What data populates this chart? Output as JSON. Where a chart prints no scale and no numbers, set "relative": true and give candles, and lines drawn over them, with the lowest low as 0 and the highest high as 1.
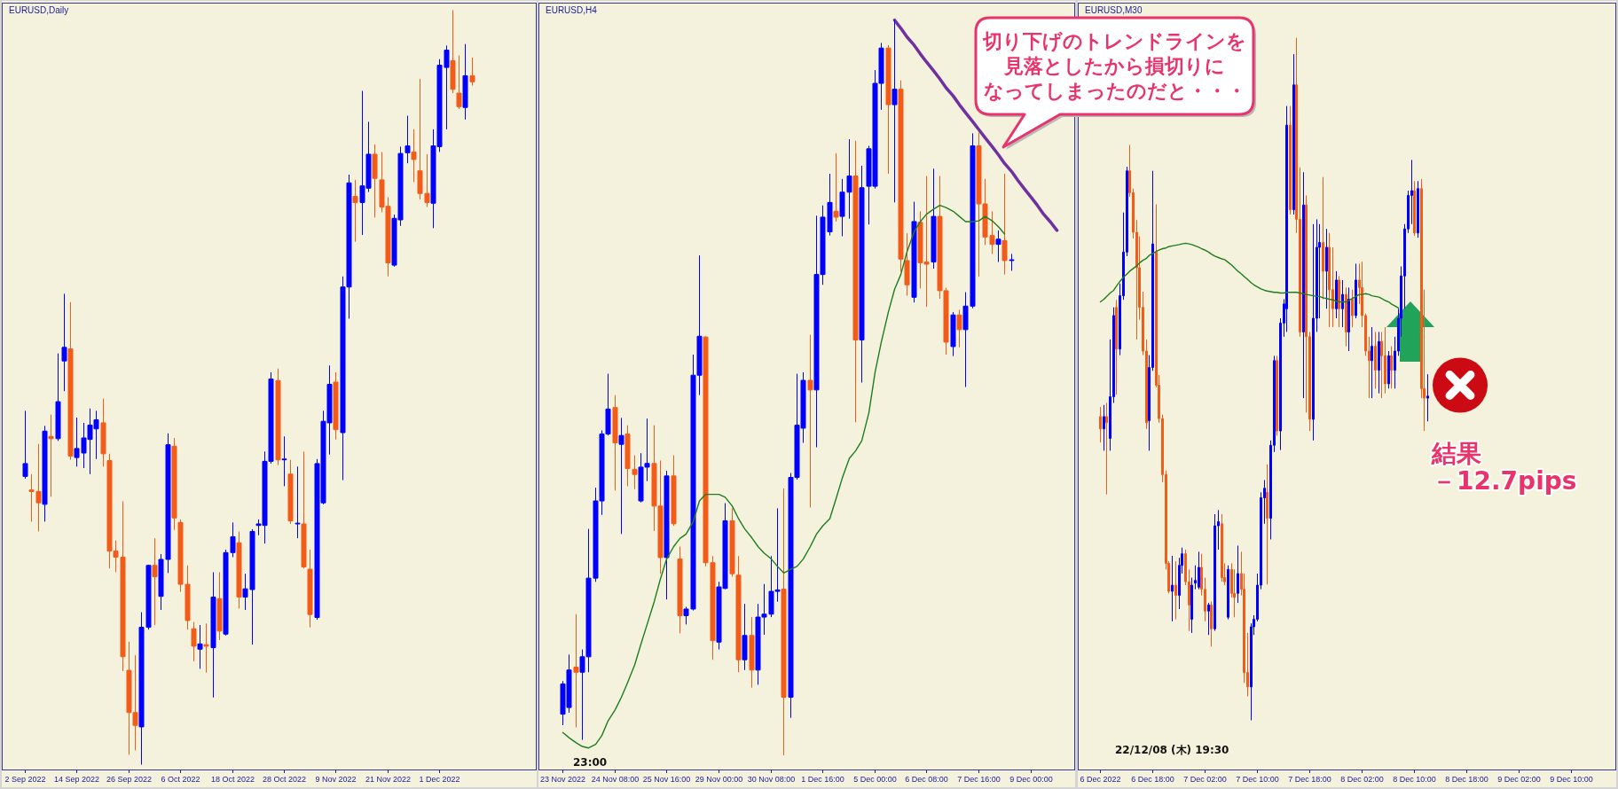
{
  "chart_data": [
    {
      "type": "candlestick",
      "title": "EURUSD,Daily",
      "relative": true,
      "categories": [
        "2 Sep 2022",
        null,
        null,
        null,
        null,
        null,
        null,
        null,
        "14 Sep 2022",
        null,
        null,
        null,
        null,
        null,
        null,
        null,
        "26 Sep 2022",
        null,
        null,
        null,
        null,
        null,
        null,
        null,
        "6 Oct 2022",
        null,
        null,
        null,
        null,
        null,
        null,
        null,
        "18 Oct 2022",
        null,
        null,
        null,
        null,
        null,
        null,
        null,
        "28 Oct 2022",
        null,
        null,
        null,
        null,
        null,
        null,
        null,
        "9 Nov 2022",
        null,
        null,
        null,
        null,
        null,
        null,
        null,
        "21 Nov 2022",
        null,
        null,
        null,
        null,
        null,
        null,
        null,
        "1 Dec 2022",
        null,
        null,
        null,
        null,
        null,
        null,
        null,
        null,
        null,
        null,
        null,
        null,
        null,
        null
      ],
      "ohlc": [
        [
          0.382,
          0.469,
          0.379,
          0.399
        ],
        [
          0.364,
          0.385,
          0.322,
          0.362
        ],
        [
          0.362,
          0.425,
          0.309,
          0.347
        ],
        [
          0.345,
          0.449,
          0.322,
          0.442
        ],
        [
          0.435,
          0.464,
          0.355,
          0.432
        ],
        [
          0.432,
          0.545,
          0.429,
          0.481
        ],
        [
          0.535,
          0.624,
          0.495,
          0.553
        ],
        [
          0.551,
          0.613,
          0.404,
          0.409
        ],
        [
          0.407,
          0.46,
          0.395,
          0.419
        ],
        [
          0.413,
          0.453,
          0.393,
          0.433
        ],
        [
          0.431,
          0.472,
          0.385,
          0.45
        ],
        [
          0.445,
          0.469,
          0.405,
          0.457
        ],
        [
          0.453,
          0.485,
          0.395,
          0.412
        ],
        [
          0.403,
          0.412,
          0.26,
          0.283
        ],
        [
          0.283,
          0.297,
          0.255,
          0.275
        ],
        [
          0.275,
          0.349,
          0.124,
          0.143
        ],
        [
          0.125,
          0.163,
          0.013,
          0.069
        ],
        [
          0.069,
          0.145,
          0.019,
          0.052
        ],
        [
          0.05,
          0.202,
          0,
          0.182
        ],
        [
          0.182,
          0.265,
          0.179,
          0.264
        ],
        [
          0.264,
          0.3,
          0.185,
          0.249
        ],
        [
          0.223,
          0.279,
          0.205,
          0.272
        ],
        [
          0.272,
          0.439,
          0.254,
          0.424
        ],
        [
          0.422,
          0.433,
          0.311,
          0.327
        ],
        [
          0.321,
          0.325,
          0.229,
          0.239
        ],
        [
          0.239,
          0.264,
          0.179,
          0.191
        ],
        [
          0.18,
          0.189,
          0.137,
          0.157
        ],
        [
          0.153,
          0.185,
          0.127,
          0.16
        ],
        [
          0.159,
          0.187,
          0.122,
          0.157
        ],
        [
          0.155,
          0.255,
          0.089,
          0.222
        ],
        [
          0.22,
          0.255,
          0.165,
          0.177
        ],
        [
          0.173,
          0.285,
          0.171,
          0.281
        ],
        [
          0.281,
          0.321,
          0.275,
          0.302
        ],
        [
          0.294,
          0.309,
          0.207,
          0.222
        ],
        [
          0.222,
          0.253,
          0.205,
          0.233
        ],
        [
          0.232,
          0.312,
          0.159,
          0.309
        ],
        [
          0.317,
          0.325,
          0.304,
          0.319
        ],
        [
          0.317,
          0.415,
          0.293,
          0.402
        ],
        [
          0.402,
          0.52,
          0.399,
          0.511
        ],
        [
          0.509,
          0.525,
          0.397,
          0.404
        ],
        [
          0.404,
          0.435,
          0.369,
          0.405
        ],
        [
          0.385,
          0.404,
          0.319,
          0.323
        ],
        [
          0.319,
          0.395,
          0.3,
          0.32
        ],
        [
          0.319,
          0.415,
          0.26,
          0.262
        ],
        [
          0.259,
          0.285,
          0.182,
          0.199
        ],
        [
          0.195,
          0.405,
          0.192,
          0.399
        ],
        [
          0.347,
          0.469,
          0.345,
          0.455
        ],
        [
          0.453,
          0.529,
          0.411,
          0.504
        ],
        [
          0.507,
          0.52,
          0.431,
          0.444
        ],
        [
          0.44,
          0.647,
          0.377,
          0.633
        ],
        [
          0.633,
          0.782,
          0.591,
          0.771
        ],
        [
          0.753,
          0.775,
          0.693,
          0.745
        ],
        [
          0.745,
          0.893,
          0.702,
          0.767
        ],
        [
          0.764,
          0.852,
          0.759,
          0.809
        ],
        [
          0.809,
          0.822,
          0.725,
          0.777
        ],
        [
          0.775,
          0.812,
          0.732,
          0.739
        ],
        [
          0.74,
          0.752,
          0.647,
          0.665
        ],
        [
          0.662,
          0.729,
          0.66,
          0.724
        ],
        [
          0.722,
          0.819,
          0.714,
          0.81
        ],
        [
          0.811,
          0.86,
          0.797,
          0.82
        ],
        [
          0.812,
          0.842,
          0.772,
          0.802
        ],
        [
          0.787,
          0.909,
          0.749,
          0.757
        ],
        [
          0.757,
          0.809,
          0.739,
          0.745
        ],
        [
          0.744,
          0.842,
          0.711,
          0.82
        ],
        [
          0.819,
          0.935,
          0.812,
          0.927
        ],
        [
          0.924,
          0.953,
          0.842,
          0.947
        ],
        [
          0.933,
          1,
          0.89,
          0.895
        ],
        [
          0.89,
          0.94,
          0.869,
          0.872
        ],
        [
          0.871,
          0.955,
          0.855,
          0.913
        ],
        [
          0.913,
          0.937,
          0.9,
          0.905
        ],
        null,
        null,
        null,
        null,
        null,
        null,
        null,
        null,
        null
      ],
      "colors": [
        "#0000ff",
        "#f25c19",
        "#f25c19",
        "#0000ff",
        "#f25c19",
        "#0000ff",
        "#0000ff",
        "#f25c19",
        "#0000ff",
        "#0000ff",
        "#0000ff",
        "#0000ff",
        "#f25c19",
        "#f25c19",
        "#f25c19",
        "#f25c19",
        "#f25c19",
        "#f25c19",
        "#0000ff",
        "#0000ff",
        "#f25c19",
        "#0000ff",
        "#0000ff",
        "#f25c19",
        "#f25c19",
        "#f25c19",
        "#f25c19",
        "#0000ff",
        "#f25c19",
        "#0000ff",
        "#f25c19",
        "#0000ff",
        "#0000ff",
        "#f25c19",
        "#0000ff",
        "#0000ff",
        "#0000ff",
        "#0000ff",
        "#0000ff",
        "#f25c19",
        "#0000ff",
        "#f25c19",
        "#0000ff",
        "#f25c19",
        "#f25c19",
        "#0000ff",
        "#0000ff",
        "#0000ff",
        "#f25c19",
        "#0000ff",
        "#0000ff",
        "#f25c19",
        "#0000ff",
        "#0000ff",
        "#f25c19",
        "#f25c19",
        "#f25c19",
        "#0000ff",
        "#0000ff",
        "#0000ff",
        "#f25c19",
        "#f25c19",
        "#f25c19",
        "#0000ff",
        "#0000ff",
        "#0000ff",
        "#f25c19",
        "#f25c19",
        "#0000ff",
        "#f25c19",
        null,
        null,
        null,
        null,
        null,
        null,
        null,
        null,
        null
      ]
    },
    {
      "type": "candlestick",
      "title": "EURUSD,H4",
      "relative": true,
      "categories": [
        "23 Nov 2022",
        null,
        null,
        null,
        null,
        null,
        null,
        null,
        "24 Nov 08:00",
        null,
        null,
        null,
        null,
        null,
        null,
        null,
        "25 Nov 16:00",
        null,
        null,
        null,
        null,
        null,
        null,
        null,
        "29 Nov 00:00",
        null,
        null,
        null,
        null,
        null,
        null,
        null,
        "30 Nov 08:00",
        null,
        null,
        null,
        null,
        null,
        null,
        null,
        "1 Dec 16:00",
        null,
        null,
        null,
        null,
        null,
        null,
        null,
        "5 Dec 00:00",
        null,
        null,
        null,
        null,
        null,
        null,
        null,
        "6 Dec 08:00",
        null,
        null,
        null,
        null,
        null,
        null,
        null,
        "7 Dec 16:00",
        null,
        null,
        null,
        null,
        null,
        null,
        null,
        "9 Dec 00:00",
        null,
        null,
        null,
        null,
        null,
        null
      ],
      "ohlc": [
        [
          0.056,
          0.101,
          0.041,
          0.097
        ],
        [
          0.065,
          0.137,
          0.058,
          0.116
        ],
        [
          0.12,
          0.192,
          0.038,
          0.113
        ],
        [
          0.113,
          0.144,
          0.021,
          0.134
        ],
        [
          0.134,
          0.308,
          0.113,
          0.241
        ],
        [
          0.241,
          0.364,
          0.236,
          0.346
        ],
        [
          0.346,
          0.442,
          0.327,
          0.437
        ],
        [
          0.437,
          0.519,
          0.435,
          0.471
        ],
        [
          0.473,
          0.49,
          0.36,
          0.425
        ],
        [
          0.423,
          0.459,
          0.301,
          0.435
        ],
        [
          0.437,
          0.449,
          0.366,
          0.39
        ],
        [
          0.389,
          0.408,
          0.362,
          0.382
        ],
        [
          0.346,
          0.411,
          0.344,
          0.392
        ],
        [
          0.392,
          0.458,
          0.373,
          0.397
        ],
        [
          0.397,
          0.449,
          0.305,
          0.339
        ],
        [
          0.339,
          0.401,
          0.247,
          0.269
        ],
        [
          0.269,
          0.387,
          0.212,
          0.38
        ],
        [
          0.38,
          0.408,
          0.312,
          0.315
        ],
        [
          0.267,
          0.284,
          0.166,
          0.19
        ],
        [
          0.19,
          0.202,
          0.178,
          0.199
        ],
        [
          0.199,
          0.545,
          0.197,
          0.517
        ],
        [
          0.517,
          0.68,
          0.49,
          0.57
        ],
        [
          0.569,
          0.57,
          0.257,
          0.262
        ],
        [
          0.262,
          0.271,
          0.13,
          0.156
        ],
        [
          0.154,
          0.236,
          0.144,
          0.229
        ],
        [
          0.227,
          0.343,
          0.226,
          0.319
        ],
        [
          0.319,
          0.336,
          0.243,
          0.247
        ],
        [
          0.245,
          0.271,
          0.113,
          0.13
        ],
        [
          0.13,
          0.206,
          0.116,
          0.163
        ],
        [
          0.163,
          0.188,
          0.092,
          0.116
        ],
        [
          0.116,
          0.206,
          0.096,
          0.188
        ],
        [
          0.188,
          0.233,
          0.164,
          0.192
        ],
        [
          0.192,
          0.271,
          0.188,
          0.223
        ],
        [
          0.223,
          0.336,
          0.209,
          0.225
        ],
        [
          0.226,
          0.363,
          0,
          0.079
        ],
        [
          0.079,
          0.384,
          0.051,
          0.378
        ],
        [
          0.378,
          0.519,
          0.375,
          0.449
        ],
        [
          0.445,
          0.521,
          0.425,
          0.51
        ],
        [
          0.51,
          0.572,
          0.337,
          0.497
        ],
        [
          0.497,
          0.734,
          0.419,
          0.654
        ],
        [
          0.654,
          0.748,
          0.64,
          0.732
        ],
        [
          0.712,
          0.791,
          0.707,
          0.752
        ],
        [
          0.74,
          0.819,
          0.726,
          0.732
        ],
        [
          0.733,
          0.784,
          0.706,
          0.766
        ],
        [
          0.766,
          0.838,
          0.73,
          0.788
        ],
        [
          0.788,
          0.836,
          0.453,
          0.565
        ],
        [
          0.565,
          0.802,
          0.507,
          0.772
        ],
        [
          0.774,
          0.829,
          0.722,
          0.825
        ],
        [
          0.774,
          0.932,
          0.771,
          0.914
        ],
        [
          0.914,
          0.969,
          0.878,
          0.962
        ],
        [
          0.962,
          0.966,
          0.791,
          0.885
        ],
        [
          0.885,
          1,
          0.752,
          0.906
        ],
        [
          0.906,
          0.918,
          0.658,
          0.675
        ],
        [
          0.673,
          0.71,
          0.625,
          0.64
        ],
        [
          0.623,
          0.753,
          0.616,
          0.726
        ],
        [
          0.725,
          0.74,
          0.635,
          0.67
        ],
        [
          0.671,
          0.788,
          0.61,
          0.668
        ],
        [
          0.671,
          0.798,
          0.662,
          0.733
        ],
        [
          0.733,
          0.788,
          0.621,
          0.632
        ],
        [
          0.632,
          0.636,
          0.545,
          0.562
        ],
        [
          0.556,
          0.603,
          0.543,
          0.599
        ],
        [
          0.599,
          0.606,
          0.555,
          0.579
        ],
        [
          0.579,
          0.63,
          0.501,
          0.611
        ],
        [
          0.611,
          0.846,
          0.608,
          0.829
        ],
        [
          0.829,
          0.847,
          0.651,
          0.75
        ],
        [
          0.75,
          0.784,
          0.694,
          0.705
        ],
        [
          0.707,
          0.74,
          0.682,
          0.695
        ],
        [
          0.695,
          0.714,
          0.671,
          0.702
        ],
        [
          0.7,
          0.791,
          0.654,
          0.673
        ],
        [
          0.673,
          0.682,
          0.659,
          0.674
        ],
        null,
        null,
        null,
        null,
        null,
        null,
        null,
        null,
        null
      ],
      "colors": [
        "#0000ff",
        "#0000ff",
        "#f25c19",
        "#0000ff",
        "#0000ff",
        "#0000ff",
        "#0000ff",
        "#0000ff",
        "#f25c19",
        "#0000ff",
        "#f25c19",
        "#f25c19",
        "#0000ff",
        "#0000ff",
        "#f25c19",
        "#f25c19",
        "#0000ff",
        "#f25c19",
        "#f25c19",
        "#0000ff",
        "#0000ff",
        "#0000ff",
        "#f25c19",
        "#f25c19",
        "#0000ff",
        "#0000ff",
        "#f25c19",
        "#f25c19",
        "#0000ff",
        "#f25c19",
        "#0000ff",
        "#0000ff",
        "#0000ff",
        "#0000ff",
        "#f25c19",
        "#0000ff",
        "#0000ff",
        "#0000ff",
        "#f25c19",
        "#0000ff",
        "#0000ff",
        "#0000ff",
        "#f25c19",
        "#0000ff",
        "#0000ff",
        "#f25c19",
        "#0000ff",
        "#0000ff",
        "#0000ff",
        "#0000ff",
        "#f25c19",
        "#0000ff",
        "#f25c19",
        "#f25c19",
        "#0000ff",
        "#f25c19",
        "#f25c19",
        "#0000ff",
        "#f25c19",
        "#f25c19",
        "#0000ff",
        "#f25c19",
        "#0000ff",
        "#0000ff",
        "#f25c19",
        "#f25c19",
        "#f25c19",
        "#0000ff",
        "#f25c19",
        "#0000ff",
        null,
        null,
        null,
        null,
        null,
        null,
        null,
        null,
        null
      ],
      "series": [
        {
          "type": "line",
          "color": "#1e7d1e",
          "values": [
            0.031,
            0.024,
            0.017,
            0.012,
            0.01,
            0.015,
            0.027,
            0.047,
            0.062,
            0.079,
            0.099,
            0.123,
            0.151,
            0.178,
            0.209,
            0.24,
            0.267,
            0.284,
            0.295,
            0.301,
            0.318,
            0.346,
            0.355,
            0.355,
            0.355,
            0.351,
            0.339,
            0.322,
            0.308,
            0.296,
            0.284,
            0.275,
            0.267,
            0.257,
            0.248,
            0.253,
            0.257,
            0.267,
            0.284,
            0.301,
            0.312,
            0.322,
            0.349,
            0.377,
            0.404,
            0.414,
            0.428,
            0.466,
            0.521,
            0.562,
            0.603,
            0.634,
            0.654,
            0.685,
            0.712,
            0.726,
            0.736,
            0.743,
            0.748,
            0.745,
            0.74,
            0.733,
            0.726,
            0.726,
            0.727,
            0.733,
            0.727,
            0.719,
            0.709,
            null,
            null,
            null,
            null,
            null,
            null,
            null,
            null,
            null,
            null
          ]
        },
        {
          "type": "line",
          "color": "#7030a0",
          "values": [
            null,
            null,
            null,
            null,
            null,
            null,
            null,
            null,
            null,
            null,
            null,
            null,
            null,
            null,
            null,
            null,
            null,
            null,
            null,
            null,
            null,
            null,
            null,
            null,
            null,
            null,
            null,
            null,
            null,
            null,
            null,
            null,
            null,
            null,
            null,
            null,
            null,
            null,
            null,
            null,
            null,
            null,
            null,
            null,
            null,
            null,
            null,
            null,
            null,
            null,
            null,
            1.0,
            0.989,
            0.977,
            0.966,
            0.954,
            0.943,
            0.931,
            0.92,
            0.908,
            0.897,
            0.885,
            0.874,
            0.862,
            0.851,
            0.84,
            0.828,
            0.817,
            0.805,
            0.794,
            0.782,
            0.771,
            0.759,
            0.748,
            0.736,
            0.725,
            0.714,
            null,
            null
          ]
        }
      ],
      "annotations": [
        "切り下げのトレンドラインを見落としたから損切りになってしまったのだと・・・",
        "23:00"
      ]
    },
    {
      "type": "candlestick",
      "title": "EURUSD,M30",
      "relative": true,
      "categories": [
        "6 Dec 2022",
        null,
        null,
        null,
        null,
        null,
        null,
        null,
        null,
        null,
        null,
        null,
        null,
        null,
        null,
        null,
        "6 Dec 18:00",
        null,
        null,
        null,
        null,
        null,
        null,
        null,
        null,
        null,
        null,
        null,
        null,
        null,
        null,
        null,
        "7 Dec 02:00",
        null,
        null,
        null,
        null,
        null,
        null,
        null,
        null,
        null,
        null,
        null,
        null,
        null,
        null,
        null,
        "7 Dec 10:00",
        null,
        null,
        null,
        null,
        null,
        null,
        null,
        null,
        null,
        null,
        null,
        null,
        null,
        null,
        null,
        "7 Dec 18:00",
        null,
        null,
        null,
        null,
        null,
        null,
        null,
        null,
        null,
        null,
        null,
        null,
        null,
        null,
        null,
        "8 Dec 02:00",
        null,
        null,
        null,
        null,
        null,
        null,
        null,
        null,
        null,
        null,
        null,
        null,
        null,
        null,
        null,
        "8 Dec 10:00",
        null,
        null,
        null,
        null,
        null,
        null,
        null,
        null,
        null,
        null,
        null,
        null,
        null,
        null,
        null,
        "8 Dec 18:00",
        null,
        null,
        null,
        null,
        null,
        null,
        null,
        null,
        null,
        null,
        null,
        null,
        null,
        null,
        null,
        "9 Dec 02:00",
        null,
        null,
        null,
        null,
        null,
        null,
        null,
        null,
        null,
        null,
        null,
        null,
        null,
        null,
        null,
        "9 Dec 10:00",
        null,
        null,
        null,
        null,
        null,
        null,
        null,
        null,
        null,
        null,
        null,
        null
      ],
      "ohlc": [
        [
          0.445,
          0.459,
          0.407,
          0.427
        ],
        [
          0.427,
          0.462,
          0.395,
          0.445
        ],
        [
          0.445,
          0.465,
          0.331,
          0.436
        ],
        [
          0.413,
          0.558,
          0.395,
          0.474
        ],
        [
          0.474,
          0.605,
          0.465,
          0.593
        ],
        [
          0.605,
          0.616,
          0.477,
          0.544
        ],
        [
          0.544,
          0.64,
          0.535,
          0.622
        ],
        [
          0.622,
          0.744,
          0.616,
          0.686
        ],
        [
          0.686,
          0.811,
          0.68,
          0.805
        ],
        [
          0.805,
          0.843,
          0.767,
          0.773
        ],
        [
          0.773,
          0.779,
          0.706,
          0.715
        ],
        [
          0.715,
          0.733,
          0.558,
          0.663
        ],
        [
          0.663,
          0.709,
          0.587,
          0.605
        ],
        [
          0.605,
          0.628,
          0.535,
          0.541
        ],
        [
          0.541,
          0.558,
          0.427,
          0.436
        ],
        [
          0.439,
          0.535,
          0.395,
          0.517
        ],
        [
          0.517,
          0.805,
          0.512,
          0.698
        ],
        [
          0.686,
          0.756,
          0.488,
          0.491
        ],
        [
          0.491,
          0.506,
          0.436,
          0.442
        ],
        [
          0.442,
          0.448,
          0.349,
          0.36
        ],
        [
          0.36,
          0.366,
          0.221,
          0.23
        ],
        [
          0.23,
          0.233,
          0.186,
          0.189
        ],
        [
          0.189,
          0.241,
          0.145,
          0.198
        ],
        [
          0.198,
          0.233,
          0.148,
          0.183
        ],
        [
          0.183,
          0.238,
          0.163,
          0.227
        ],
        [
          0.227,
          0.253,
          0.215,
          0.244
        ],
        [
          0.244,
          0.25,
          0.198,
          0.203
        ],
        [
          0.203,
          0.221,
          0.131,
          0.169
        ],
        [
          0.148,
          0.209,
          0.128,
          0.198
        ],
        [
          0.201,
          0.227,
          0.192,
          0.205
        ],
        [
          0.195,
          0.247,
          0.192,
          0.224
        ],
        [
          0.224,
          0.244,
          0.183,
          0.192
        ],
        [
          0.192,
          0.209,
          0.145,
          0.16
        ],
        [
          0.16,
          0.172,
          0.125,
          0.169
        ],
        [
          0.169,
          0.174,
          0.108,
          0.134
        ],
        [
          0.134,
          0.302,
          0.131,
          0.285
        ],
        [
          0.285,
          0.308,
          0.25,
          0.291
        ],
        [
          0.288,
          0.302,
          0.203,
          0.209
        ],
        [
          0.209,
          0.23,
          0.198,
          0.203
        ],
        [
          0.151,
          0.227,
          0.148,
          0.221
        ],
        [
          0.221,
          0.23,
          0.18,
          0.186
        ],
        [
          0.186,
          0.221,
          0.151,
          0.18
        ],
        [
          0.186,
          0.256,
          0.172,
          0.215
        ],
        [
          0.215,
          0.247,
          0.183,
          0.192
        ],
        [
          0.192,
          0.215,
          0.055,
          0.07
        ],
        [
          0.07,
          0.128,
          0.035,
          0.049
        ],
        [
          0.049,
          0.142,
          0,
          0.137
        ],
        [
          0.137,
          0.154,
          0.125,
          0.148
        ],
        [
          0.148,
          0.215,
          0.145,
          0.198
        ],
        [
          0.198,
          0.334,
          0.192,
          0.326
        ],
        [
          0.326,
          0.352,
          0.288,
          0.34
        ],
        [
          0.334,
          0.375,
          0.199,
          0.296
        ],
        [
          0.296,
          0.41,
          0.265,
          0.403
        ],
        [
          0.403,
          0.534,
          0.393,
          0.527
        ],
        [
          0.527,
          0.534,
          0.417,
          0.424
        ],
        [
          0.424,
          0.589,
          0.396,
          0.582
        ],
        [
          0.582,
          0.617,
          0.562,
          0.61
        ],
        [
          0.603,
          0.9,
          0.569,
          0.872
        ],
        [
          0.872,
          0.9,
          0.741,
          0.748
        ],
        [
          0.748,
          0.976,
          0.741,
          0.931
        ],
        [
          0.931,
          1,
          0.714,
          0.734
        ],
        [
          0.734,
          0.81,
          0.562,
          0.569
        ],
        [
          0.569,
          0.803,
          0.472,
          0.755
        ],
        [
          0.755,
          0.769,
          0.451,
          0.562
        ],
        [
          0.562,
          0.569,
          0.424,
          0.441
        ],
        [
          0.441,
          0.727,
          0.41,
          0.589
        ],
        [
          0.589,
          0.734,
          0.569,
          0.693
        ],
        [
          0.693,
          0.727,
          0.589,
          0.7
        ],
        [
          0.7,
          0.796,
          0.617,
          0.658
        ],
        [
          0.658,
          0.72,
          0.603,
          0.693
        ],
        [
          0.693,
          0.714,
          0.576,
          0.631
        ],
        [
          0.631,
          0.693,
          0.576,
          0.603
        ],
        [
          0.603,
          0.658,
          0.589,
          0.645
        ],
        [
          0.645,
          0.651,
          0.576,
          0.603
        ],
        [
          0.603,
          0.645,
          0.576,
          0.624
        ],
        [
          0.624,
          0.634,
          0.548,
          0.569
        ],
        [
          0.569,
          0.634,
          0.541,
          0.617
        ],
        [
          0.617,
          0.631,
          0.576,
          0.593
        ],
        [
          0.593,
          0.669,
          0.589,
          0.645
        ],
        [
          0.645,
          0.669,
          0.61,
          0.634
        ],
        [
          0.634,
          0.672,
          0.576,
          0.593
        ],
        [
          0.593,
          0.596,
          0.534,
          0.541
        ],
        [
          0.541,
          0.562,
          0.472,
          0.527
        ],
        [
          0.527,
          0.576,
          0.472,
          0.548
        ],
        [
          0.548,
          0.569,
          0.486,
          0.513
        ],
        [
          0.513,
          0.569,
          0.479,
          0.555
        ],
        [
          0.555,
          0.569,
          0.472,
          0.534
        ],
        [
          0.534,
          0.576,
          0.479,
          0.493
        ],
        [
          0.493,
          0.541,
          0.486,
          0.534
        ],
        [
          0.534,
          0.548,
          0.486,
          0.513
        ],
        [
          0.513,
          0.562,
          0.486,
          0.541
        ],
        [
          0.541,
          0.603,
          0.534,
          0.589
        ],
        [
          0.589,
          0.665,
          0.562,
          0.651
        ],
        [
          0.651,
          0.727,
          0.603,
          0.72
        ],
        [
          0.72,
          0.776,
          0.714,
          0.769
        ],
        [
          0.769,
          0.821,
          0.727,
          0.776
        ],
        [
          0.776,
          0.79,
          0.71,
          0.714
        ],
        [
          0.714,
          0.79,
          0.707,
          0.779
        ],
        [
          0.779,
          0.793,
          0.472,
          0.486
        ],
        [
          0.486,
          0.631,
          0.424,
          0.472
        ],
        [
          0.472,
          0.507,
          0.438,
          0.475
        ],
        null,
        null,
        null,
        null,
        null,
        null,
        null,
        null,
        null,
        null,
        null,
        null,
        null,
        null,
        null,
        null,
        null,
        null,
        null,
        null,
        null,
        null,
        null,
        null,
        null,
        null,
        null,
        null,
        null,
        null,
        null,
        null,
        null,
        null,
        null,
        null,
        null,
        null,
        null,
        null,
        null,
        null,
        null,
        null,
        null,
        null,
        null,
        null,
        null,
        null,
        null,
        null,
        null,
        null,
        null,
        null
      ],
      "colors": [
        "#f25c19",
        "#0000ff",
        "#f25c19",
        "#0000ff",
        "#0000ff",
        "#f25c19",
        "#0000ff",
        "#0000ff",
        "#0000ff",
        "#f25c19",
        "#f25c19",
        "#f25c19",
        "#f25c19",
        "#f25c19",
        "#f25c19",
        "#0000ff",
        "#0000ff",
        "#f25c19",
        "#f25c19",
        "#f25c19",
        "#f25c19",
        "#f25c19",
        "#0000ff",
        "#f25c19",
        "#0000ff",
        "#0000ff",
        "#f25c19",
        "#f25c19",
        "#0000ff",
        "#0000ff",
        "#0000ff",
        "#f25c19",
        "#f25c19",
        "#0000ff",
        "#f25c19",
        "#0000ff",
        "#0000ff",
        "#f25c19",
        "#f25c19",
        "#0000ff",
        "#f25c19",
        "#f25c19",
        "#0000ff",
        "#f25c19",
        "#f25c19",
        "#f25c19",
        "#0000ff",
        "#0000ff",
        "#0000ff",
        "#0000ff",
        "#0000ff",
        "#f25c19",
        "#0000ff",
        "#0000ff",
        "#f25c19",
        "#0000ff",
        "#0000ff",
        "#0000ff",
        "#f25c19",
        "#0000ff",
        "#f25c19",
        "#f25c19",
        "#0000ff",
        "#f25c19",
        "#f25c19",
        "#0000ff",
        "#0000ff",
        "#0000ff",
        "#f25c19",
        "#0000ff",
        "#f25c19",
        "#f25c19",
        "#0000ff",
        "#f25c19",
        "#0000ff",
        "#f25c19",
        "#0000ff",
        "#f25c19",
        "#0000ff",
        "#f25c19",
        "#f25c19",
        "#f25c19",
        "#f25c19",
        "#0000ff",
        "#f25c19",
        "#0000ff",
        "#f25c19",
        "#f25c19",
        "#0000ff",
        "#f25c19",
        "#0000ff",
        "#0000ff",
        "#0000ff",
        "#0000ff",
        "#0000ff",
        "#0000ff",
        "#f25c19",
        "#0000ff",
        "#f25c19",
        "#f25c19",
        "#0000ff",
        null,
        null,
        null,
        null,
        null,
        null,
        null,
        null,
        null,
        null,
        null,
        null,
        null,
        null,
        null,
        null,
        null,
        null,
        null,
        null,
        null,
        null,
        null,
        null,
        null,
        null,
        null,
        null,
        null,
        null,
        null,
        null,
        null,
        null,
        null,
        null,
        null,
        null,
        null,
        null,
        null,
        null,
        null,
        null,
        null,
        null,
        null,
        null,
        null,
        null,
        null,
        null,
        null,
        null,
        null,
        null
      ],
      "series": [
        {
          "type": "line",
          "color": "#1e7d1e",
          "values": [
            0.613,
            0.617,
            0.621,
            0.626,
            0.63,
            0.636,
            0.643,
            0.649,
            0.654,
            0.658,
            0.662,
            0.666,
            0.67,
            0.674,
            0.677,
            0.681,
            0.684,
            0.687,
            0.689,
            0.691,
            0.692,
            0.694,
            0.695,
            0.696,
            0.697,
            0.698,
            0.699,
            0.698,
            0.697,
            0.695,
            0.693,
            0.691,
            0.689,
            0.686,
            0.683,
            0.68,
            0.678,
            0.676,
            0.675,
            0.671,
            0.667,
            0.663,
            0.658,
            0.654,
            0.65,
            0.646,
            0.641,
            0.638,
            0.635,
            0.632,
            0.63,
            0.629,
            0.628,
            0.627,
            0.627,
            0.626,
            0.626,
            0.627,
            0.627,
            0.627,
            0.627,
            0.626,
            0.625,
            0.624,
            0.623,
            0.622,
            0.621,
            0.621,
            0.619,
            0.618,
            0.617,
            0.616,
            0.614,
            0.613,
            0.613,
            0.613,
            0.615,
            0.618,
            0.621,
            0.624,
            0.624,
            0.625,
            0.624,
            0.622,
            0.621,
            0.62,
            0.618,
            0.615,
            0.613,
            0.61,
            0.607,
            0.604,
            null,
            null,
            null,
            null,
            null,
            null,
            null,
            null,
            null,
            null,
            null,
            null,
            null,
            null,
            null,
            null,
            null,
            null,
            null,
            null,
            null,
            null,
            null,
            null,
            null,
            null,
            null,
            null,
            null,
            null,
            null,
            null,
            null,
            null,
            null,
            null,
            null,
            null,
            null,
            null,
            null,
            null,
            null,
            null,
            null,
            null,
            null,
            null,
            null,
            null,
            null,
            null,
            null,
            null,
            null,
            null,
            null,
            null,
            null,
            null,
            null,
            null,
            null,
            null,
            null
          ]
        }
      ],
      "annotations": [
        "結果",
        "－12.7pips",
        "22/12/08 (木) 19:30"
      ]
    }
  ]
}
